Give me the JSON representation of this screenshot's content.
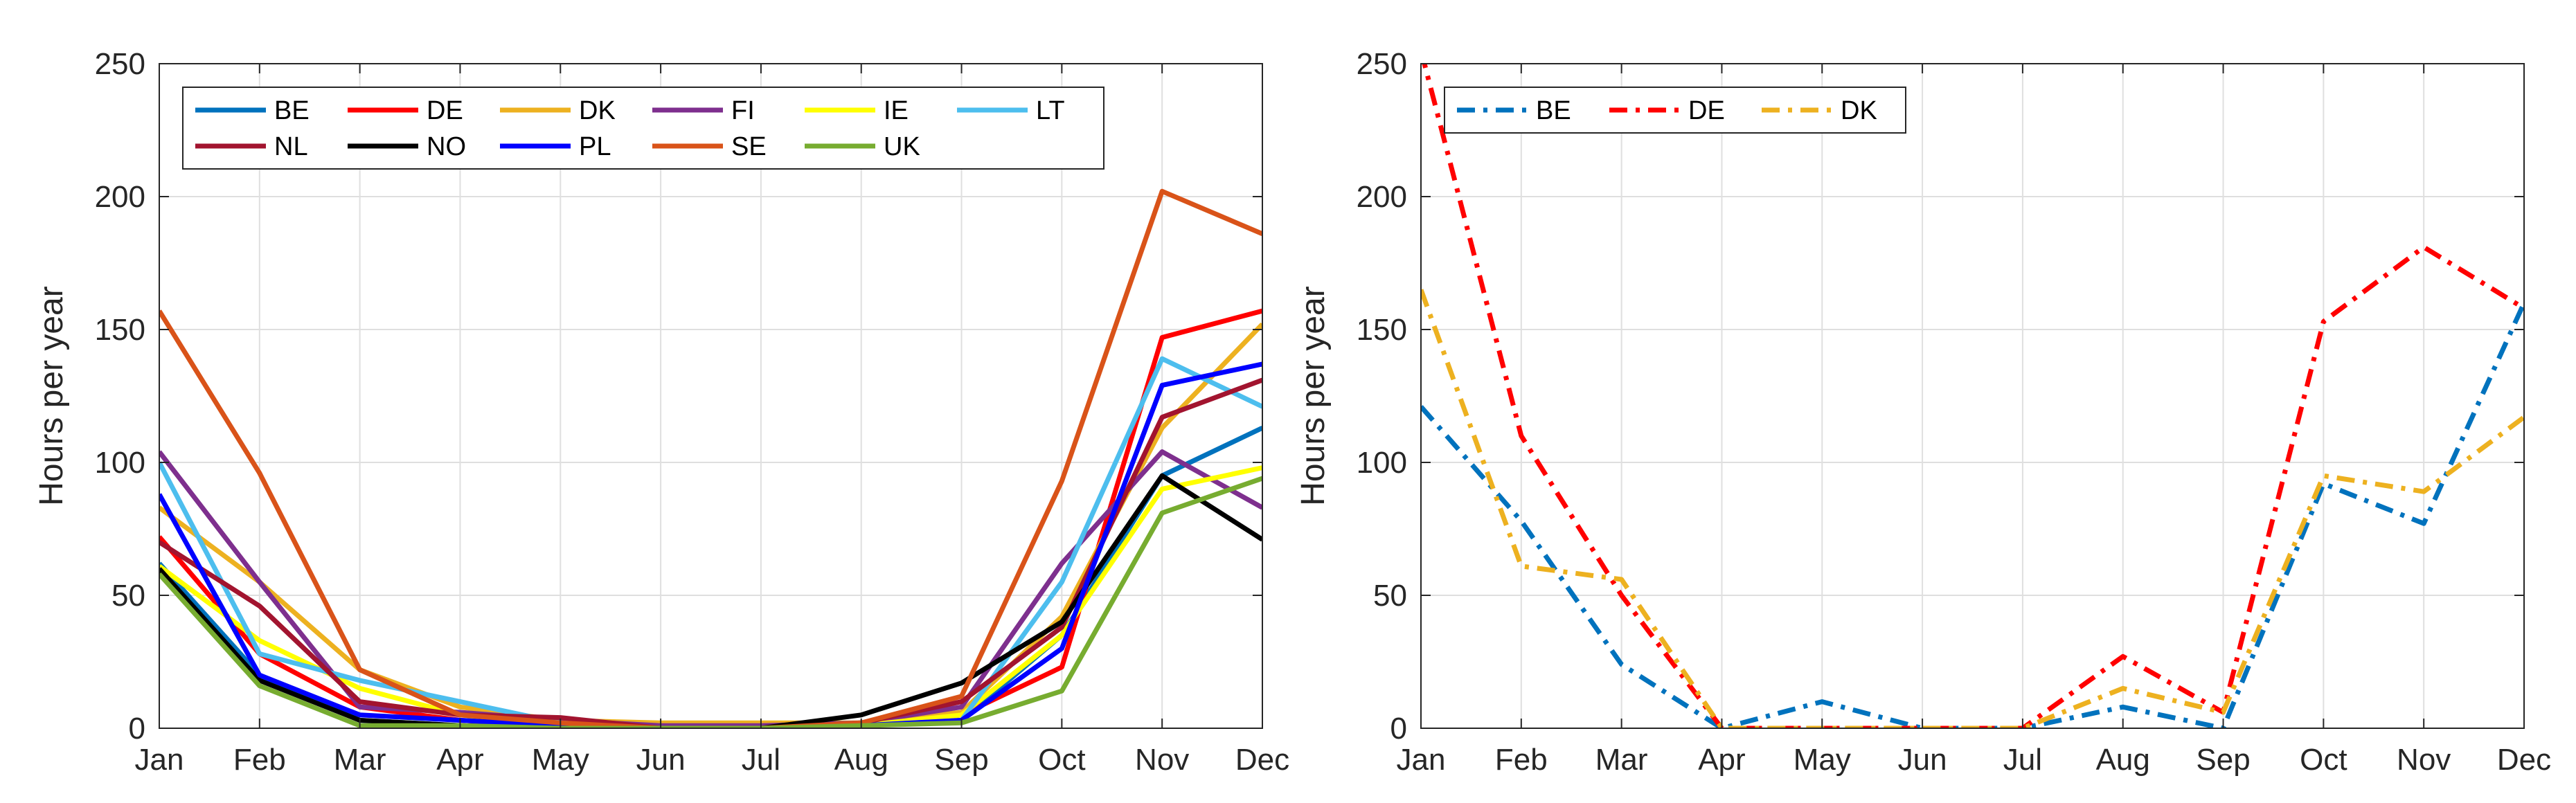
{
  "chart_data": [
    {
      "type": "line",
      "title": "",
      "xlabel": "",
      "ylabel": "Hours per year",
      "categories": [
        "Jan",
        "Feb",
        "Mar",
        "Apr",
        "May",
        "Jun",
        "Jul",
        "Aug",
        "Sep",
        "Oct",
        "Nov",
        "Dec"
      ],
      "yticks": [
        "0",
        "50",
        "100",
        "150",
        "200",
        "250"
      ],
      "ylim": [
        0,
        250
      ],
      "grid": true,
      "legend": "top-left",
      "series": [
        {
          "name": "BE",
          "color": "#0072BD",
          "dash": "solid",
          "values": [
            62,
            20,
            3,
            1,
            0,
            0,
            0,
            1,
            3,
            35,
            95,
            113
          ]
        },
        {
          "name": "DE",
          "color": "#FF0000",
          "dash": "solid",
          "values": [
            72,
            28,
            8,
            3,
            1,
            0,
            0,
            1,
            5,
            23,
            147,
            157
          ]
        },
        {
          "name": "DK",
          "color": "#EDB120",
          "dash": "solid",
          "values": [
            83,
            55,
            22,
            8,
            3,
            2,
            2,
            2,
            6,
            42,
            113,
            152
          ]
        },
        {
          "name": "FI",
          "color": "#7E2F8E",
          "dash": "solid",
          "values": [
            104,
            55,
            8,
            6,
            3,
            1,
            1,
            2,
            8,
            62,
            104,
            83
          ]
        },
        {
          "name": "IE",
          "color": "#FFFF00",
          "dash": "solid",
          "values": [
            61,
            33,
            15,
            5,
            1,
            0,
            0,
            1,
            5,
            35,
            90,
            98
          ]
        },
        {
          "name": "LT",
          "color": "#4DBEEE",
          "dash": "solid",
          "values": [
            100,
            28,
            18,
            10,
            2,
            0,
            0,
            1,
            3,
            55,
            139,
            121
          ]
        },
        {
          "name": "NL",
          "color": "#A2142F",
          "dash": "solid",
          "values": [
            70,
            46,
            10,
            5,
            4,
            0,
            0,
            2,
            10,
            38,
            117,
            131
          ]
        },
        {
          "name": "NO",
          "color": "#000000",
          "dash": "solid",
          "values": [
            60,
            18,
            3,
            1,
            0,
            0,
            0,
            5,
            17,
            40,
            95,
            71
          ]
        },
        {
          "name": "PL",
          "color": "#0000FF",
          "dash": "solid",
          "values": [
            88,
            20,
            5,
            3,
            1,
            0,
            0,
            1,
            3,
            30,
            129,
            137
          ]
        },
        {
          "name": "SE",
          "color": "#D95319",
          "dash": "solid",
          "values": [
            157,
            96,
            22,
            5,
            2,
            0,
            0,
            2,
            12,
            93,
            202,
            186
          ]
        },
        {
          "name": "UK",
          "color": "#77AC30",
          "dash": "solid",
          "values": [
            58,
            16,
            1,
            1,
            0,
            0,
            0,
            1,
            2,
            14,
            81,
            94
          ]
        }
      ]
    },
    {
      "type": "line",
      "title": "",
      "xlabel": "",
      "ylabel": "Hours per year",
      "categories": [
        "Jan",
        "Feb",
        "Mar",
        "Apr",
        "May",
        "Jun",
        "Jul",
        "Aug",
        "Sep",
        "Oct",
        "Nov",
        "Dec"
      ],
      "yticks": [
        "0",
        "50",
        "100",
        "150",
        "200",
        "250"
      ],
      "ylim": [
        0,
        250
      ],
      "grid": true,
      "legend": "top-left",
      "series": [
        {
          "name": "BE",
          "color": "#0072BD",
          "dash": "dashdot",
          "values": [
            121,
            78,
            24,
            0,
            10,
            0,
            0,
            8,
            0,
            92,
            77,
            160
          ]
        },
        {
          "name": "DE",
          "color": "#FF0000",
          "dash": "dashdot",
          "values": [
            255,
            110,
            50,
            0,
            0,
            0,
            0,
            27,
            6,
            153,
            181,
            158
          ]
        },
        {
          "name": "DK",
          "color": "#EDB120",
          "dash": "dashdot",
          "values": [
            165,
            61,
            56,
            0,
            0,
            0,
            0,
            15,
            6,
            95,
            89,
            117
          ]
        }
      ]
    }
  ]
}
